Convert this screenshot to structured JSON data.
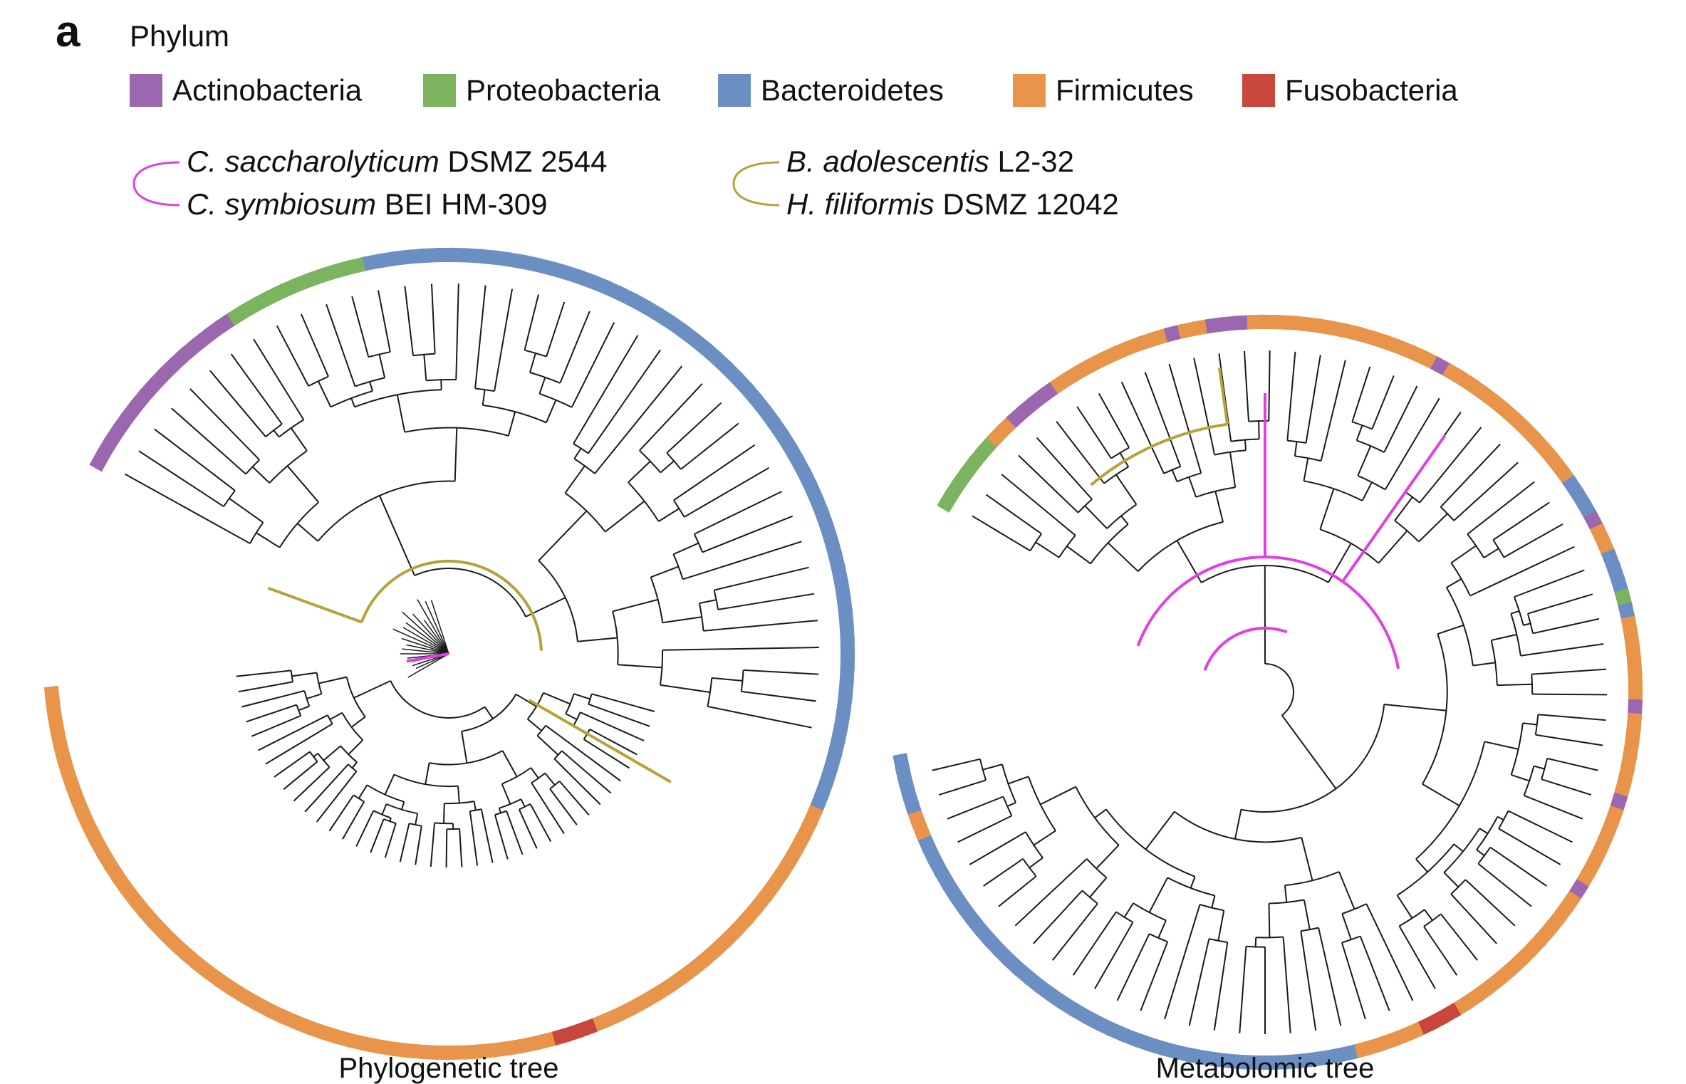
{
  "panel_label": "a",
  "legend": {
    "title": "Phylum",
    "phyla": [
      {
        "name": "Actinobacteria",
        "color": "#9b68b0"
      },
      {
        "name": "Proteobacteria",
        "color": "#7bb35e"
      },
      {
        "name": "Bacteroidetes",
        "color": "#6b8fc3"
      },
      {
        "name": "Firmicutes",
        "color": "#e8944a"
      },
      {
        "name": "Fusobacteria",
        "color": "#c8463b"
      }
    ],
    "pairs": [
      {
        "color": "#e040e0",
        "strains": [
          {
            "genus_species": "C. saccharolyticum",
            "strain": " DSMZ 2544"
          },
          {
            "genus_species": "C. symbiosum",
            "strain": " BEI HM-309"
          }
        ]
      },
      {
        "color": "#b5a33a",
        "strains": [
          {
            "genus_species": "B. adolescentis",
            "strain": " L2-32"
          },
          {
            "genus_species": "H. filiformis",
            "strain": " DSMZ 12042"
          }
        ]
      }
    ]
  },
  "trees": [
    {
      "caption": "Phylogenetic tree",
      "ring": [
        {
          "phylum": "Actinobacteria",
          "count": 14
        },
        {
          "phylum": "Proteobacteria",
          "count": 10
        },
        {
          "phylum": "Bacteroidetes",
          "count": 60
        },
        {
          "phylum": "Firmicutes",
          "count": 22
        },
        {
          "phylum": "Fusobacteria",
          "count": 3
        },
        {
          "phylum": "Firmicutes",
          "count": 48
        }
      ]
    },
    {
      "caption": "Metabolomic tree",
      "ring": [
        {
          "phylum": "Proteobacteria",
          "count": 6
        },
        {
          "phylum": "Firmicutes",
          "count": 2
        },
        {
          "phylum": "Actinobacteria",
          "count": 4
        },
        {
          "phylum": "Firmicutes",
          "count": 9
        },
        {
          "phylum": "Actinobacteria",
          "count": 1
        },
        {
          "phylum": "Firmicutes",
          "count": 2
        },
        {
          "phylum": "Actinobacteria",
          "count": 3
        },
        {
          "phylum": "Firmicutes",
          "count": 14
        },
        {
          "phylum": "Actinobacteria",
          "count": 1
        },
        {
          "phylum": "Firmicutes",
          "count": 12
        },
        {
          "phylum": "Bacteroidetes",
          "count": 3
        },
        {
          "phylum": "Actinobacteria",
          "count": 1
        },
        {
          "phylum": "Firmicutes",
          "count": 2
        },
        {
          "phylum": "Bacteroidetes",
          "count": 3
        },
        {
          "phylum": "Proteobacteria",
          "count": 1
        },
        {
          "phylum": "Bacteroidetes",
          "count": 1
        },
        {
          "phylum": "Firmicutes",
          "count": 6
        },
        {
          "phylum": "Actinobacteria",
          "count": 1
        },
        {
          "phylum": "Firmicutes",
          "count": 6
        },
        {
          "phylum": "Actinobacteria",
          "count": 1
        },
        {
          "phylum": "Firmicutes",
          "count": 6
        },
        {
          "phylum": "Actinobacteria",
          "count": 1
        },
        {
          "phylum": "Firmicutes",
          "count": 12
        },
        {
          "phylum": "Fusobacteria",
          "count": 3
        },
        {
          "phylum": "Firmicutes",
          "count": 5
        },
        {
          "phylum": "Bacteroidetes",
          "count": 38
        },
        {
          "phylum": "Firmicutes",
          "count": 2
        },
        {
          "phylum": "Bacteroidetes",
          "count": 4
        }
      ]
    }
  ]
}
